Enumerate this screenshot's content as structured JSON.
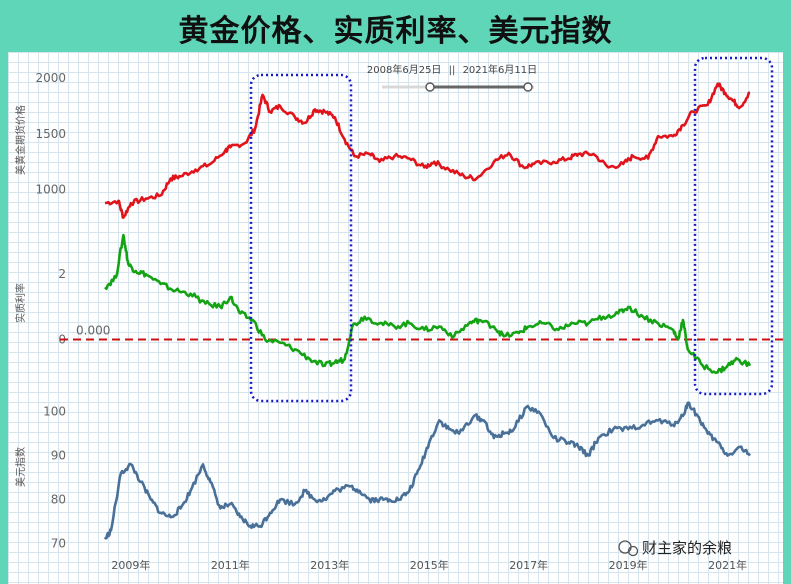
{
  "title": "黄金价格、实质利率、美元指数",
  "range_filter": {
    "start": "2008年6月25日",
    "end": "2021年6月11日"
  },
  "watermark": "财主家的余粮",
  "colors": {
    "gold": "#e0141a",
    "rate": "#13a313",
    "usd": "#4a7098",
    "zero_line": "#cc1111",
    "highlight_box": "#1a1ac8",
    "background": "#5fd6b8"
  },
  "x_ticks": [
    "2009年",
    "2011年",
    "2013年",
    "2015年",
    "2017年",
    "2019年",
    "2021年"
  ],
  "chart_data": [
    {
      "type": "line",
      "ylabel": "美黄金期货价格",
      "y_ticks": [
        "2000",
        "1500",
        "1000"
      ],
      "ylim": [
        800,
        2100
      ],
      "x_range": [
        2008.48,
        2021.45
      ],
      "series": [
        {
          "x": [
            2008.48,
            2008.75,
            2008.85,
            2009.0,
            2009.3,
            2009.6,
            2009.8,
            2010.0,
            2010.3,
            2010.6,
            2010.9,
            2011.0,
            2011.3,
            2011.5,
            2011.65,
            2011.8,
            2012.0,
            2012.3,
            2012.5,
            2012.7,
            2012.9,
            2013.1,
            2013.3,
            2013.5,
            2013.8,
            2014.0,
            2014.3,
            2014.6,
            2014.9,
            2015.1,
            2015.4,
            2015.7,
            2015.95,
            2016.3,
            2016.6,
            2016.9,
            2017.1,
            2017.5,
            2017.8,
            2018.0,
            2018.3,
            2018.6,
            2018.9,
            2019.1,
            2019.4,
            2019.6,
            2019.9,
            2020.1,
            2020.3,
            2020.6,
            2020.8,
            2020.95,
            2021.1,
            2021.25,
            2021.45
          ],
          "values": [
            880,
            900,
            750,
            880,
            920,
            950,
            1100,
            1120,
            1180,
            1230,
            1350,
            1380,
            1420,
            1550,
            1850,
            1700,
            1750,
            1650,
            1600,
            1720,
            1700,
            1650,
            1450,
            1300,
            1320,
            1250,
            1300,
            1280,
            1200,
            1250,
            1180,
            1120,
            1100,
            1250,
            1330,
            1200,
            1230,
            1250,
            1280,
            1320,
            1320,
            1200,
            1230,
            1300,
            1280,
            1480,
            1480,
            1580,
            1700,
            1760,
            1950,
            1870,
            1800,
            1740,
            1870
          ]
        }
      ]
    },
    {
      "type": "line",
      "ylabel": "实质利率",
      "y_ticks": [
        "2",
        "0"
      ],
      "ylim": [
        -1.3,
        3.6
      ],
      "x_range": [
        2008.48,
        2021.45
      ],
      "annotations": [
        {
          "label": "0.000",
          "y": 0
        }
      ],
      "series": [
        {
          "x": [
            2008.48,
            2008.7,
            2008.85,
            2008.95,
            2009.1,
            2009.3,
            2009.6,
            2009.9,
            2010.2,
            2010.5,
            2010.8,
            2011.0,
            2011.2,
            2011.45,
            2011.7,
            2012.0,
            2012.3,
            2012.6,
            2012.9,
            2013.1,
            2013.3,
            2013.45,
            2013.7,
            2014.0,
            2014.3,
            2014.6,
            2014.9,
            2015.2,
            2015.5,
            2015.8,
            2016.0,
            2016.3,
            2016.5,
            2016.8,
            2017.0,
            2017.3,
            2017.6,
            2017.9,
            2018.2,
            2018.5,
            2018.8,
            2019.0,
            2019.3,
            2019.6,
            2019.9,
            2020.0,
            2020.1,
            2020.2,
            2020.5,
            2020.8,
            2021.0,
            2021.2,
            2021.45
          ],
          "values": [
            1.6,
            1.9,
            3.2,
            2.3,
            2.1,
            2.0,
            1.7,
            1.5,
            1.4,
            1.1,
            1.0,
            1.3,
            0.8,
            0.6,
            0.0,
            -0.1,
            -0.3,
            -0.6,
            -0.8,
            -0.7,
            -0.6,
            0.4,
            0.7,
            0.5,
            0.4,
            0.5,
            0.3,
            0.4,
            0.1,
            0.5,
            0.6,
            0.4,
            0.1,
            0.2,
            0.4,
            0.5,
            0.3,
            0.5,
            0.5,
            0.7,
            0.8,
            1.0,
            0.7,
            0.5,
            0.3,
            0.0,
            0.6,
            -0.3,
            -0.8,
            -1.0,
            -0.8,
            -0.6,
            -0.8
          ]
        }
      ]
    },
    {
      "type": "line",
      "ylabel": "美元指数",
      "y_ticks": [
        "100",
        "90",
        "80",
        "70"
      ],
      "ylim": [
        69,
        104
      ],
      "x_range": [
        2008.48,
        2021.45
      ],
      "series": [
        {
          "x": [
            2008.48,
            2008.6,
            2008.8,
            2009.0,
            2009.2,
            2009.4,
            2009.6,
            2009.8,
            2010.0,
            2010.2,
            2010.45,
            2010.6,
            2010.8,
            2011.0,
            2011.2,
            2011.4,
            2011.6,
            2011.8,
            2012.0,
            2012.3,
            2012.5,
            2012.7,
            2012.9,
            2013.1,
            2013.4,
            2013.6,
            2013.8,
            2014.0,
            2014.2,
            2014.4,
            2014.6,
            2014.8,
            2015.0,
            2015.2,
            2015.4,
            2015.6,
            2015.9,
            2016.1,
            2016.3,
            2016.5,
            2016.7,
            2016.95,
            2017.2,
            2017.5,
            2017.8,
            2018.0,
            2018.2,
            2018.4,
            2018.7,
            2019.0,
            2019.3,
            2019.6,
            2019.9,
            2020.1,
            2020.2,
            2020.4,
            2020.6,
            2020.8,
            2021.0,
            2021.25,
            2021.45
          ],
          "values": [
            71,
            73,
            86,
            88,
            84,
            80,
            77,
            76,
            78,
            82,
            88,
            84,
            78,
            79,
            76,
            74,
            74,
            77,
            80,
            79,
            82,
            80,
            80,
            82,
            83,
            82,
            80,
            80,
            80,
            80,
            82,
            87,
            93,
            98,
            96,
            95,
            99,
            98,
            94,
            95,
            96,
            101,
            100,
            94,
            93,
            92,
            90,
            94,
            96,
            96,
            97,
            98,
            97,
            99,
            102,
            99,
            95,
            93,
            90,
            92,
            90
          ]
        }
      ]
    }
  ]
}
